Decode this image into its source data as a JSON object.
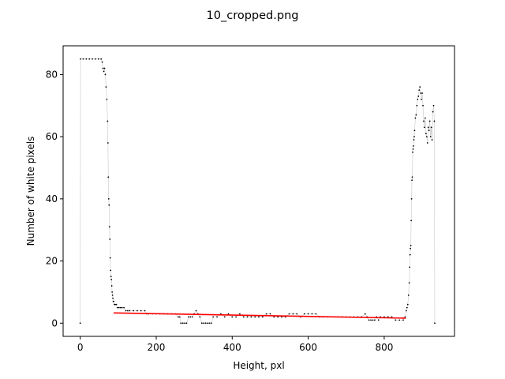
{
  "chart_data": {
    "type": "scatter",
    "title": "10_cropped.png",
    "xlabel": "Height, pxl",
    "ylabel": "Number of white pixels",
    "xlim": [
      -45,
      985
    ],
    "ylim": [
      -4.25,
      89.25
    ],
    "xticks": [
      0,
      200,
      400,
      600,
      800
    ],
    "yticks": [
      0,
      20,
      40,
      60,
      80
    ],
    "grid": false,
    "series": [
      {
        "kind": "points_with_line",
        "color": "#000000",
        "line_color": "#c8c8c8",
        "points": [
          [
            0,
            0
          ],
          [
            1,
            85
          ],
          [
            8,
            85
          ],
          [
            16,
            85
          ],
          [
            24,
            85
          ],
          [
            32,
            85
          ],
          [
            40,
            85
          ],
          [
            48,
            85
          ],
          [
            55,
            85
          ],
          [
            58,
            84
          ],
          [
            60,
            82
          ],
          [
            62,
            81
          ],
          [
            64,
            82
          ],
          [
            66,
            80
          ],
          [
            68,
            76
          ],
          [
            70,
            72
          ],
          [
            72,
            65
          ],
          [
            73,
            58
          ],
          [
            74,
            47
          ],
          [
            75,
            40
          ],
          [
            76,
            38
          ],
          [
            77,
            31
          ],
          [
            78,
            27
          ],
          [
            79,
            21
          ],
          [
            80,
            17
          ],
          [
            81,
            15
          ],
          [
            82,
            14
          ],
          [
            83,
            12
          ],
          [
            84,
            10
          ],
          [
            85,
            9
          ],
          [
            86,
            8
          ],
          [
            87,
            7
          ],
          [
            88,
            7
          ],
          [
            90,
            6
          ],
          [
            92,
            6
          ],
          [
            95,
            6
          ],
          [
            98,
            5
          ],
          [
            102,
            5
          ],
          [
            106,
            5
          ],
          [
            110,
            5
          ],
          [
            115,
            5
          ],
          [
            120,
            4
          ],
          [
            125,
            4
          ],
          [
            130,
            4
          ],
          [
            140,
            4
          ],
          [
            150,
            4
          ],
          [
            160,
            4
          ],
          [
            170,
            4
          ],
          [
            175,
            3
          ],
          [
            180,
            3
          ],
          [
            190,
            3
          ],
          [
            200,
            3
          ],
          [
            210,
            3
          ],
          [
            220,
            3
          ],
          [
            230,
            3
          ],
          [
            240,
            3
          ],
          [
            250,
            3
          ],
          [
            258,
            2
          ],
          [
            262,
            2
          ],
          [
            265,
            0
          ],
          [
            270,
            0
          ],
          [
            275,
            0
          ],
          [
            280,
            0
          ],
          [
            285,
            2
          ],
          [
            290,
            2
          ],
          [
            295,
            2
          ],
          [
            300,
            3
          ],
          [
            305,
            4
          ],
          [
            310,
            3
          ],
          [
            315,
            2
          ],
          [
            320,
            0
          ],
          [
            325,
            0
          ],
          [
            330,
            0
          ],
          [
            335,
            0
          ],
          [
            340,
            0
          ],
          [
            345,
            0
          ],
          [
            350,
            2
          ],
          [
            360,
            2
          ],
          [
            370,
            3
          ],
          [
            380,
            2
          ],
          [
            390,
            3
          ],
          [
            400,
            2
          ],
          [
            410,
            2
          ],
          [
            420,
            3
          ],
          [
            430,
            2
          ],
          [
            440,
            2
          ],
          [
            450,
            2
          ],
          [
            460,
            2
          ],
          [
            470,
            2
          ],
          [
            480,
            2
          ],
          [
            490,
            3
          ],
          [
            500,
            3
          ],
          [
            510,
            2
          ],
          [
            520,
            2
          ],
          [
            530,
            2
          ],
          [
            540,
            2
          ],
          [
            550,
            3
          ],
          [
            560,
            3
          ],
          [
            570,
            3
          ],
          [
            580,
            2
          ],
          [
            590,
            3
          ],
          [
            600,
            3
          ],
          [
            610,
            3
          ],
          [
            620,
            3
          ],
          [
            630,
            2
          ],
          [
            640,
            2
          ],
          [
            650,
            2
          ],
          [
            660,
            2
          ],
          [
            670,
            2
          ],
          [
            680,
            2
          ],
          [
            690,
            2
          ],
          [
            700,
            2
          ],
          [
            710,
            2
          ],
          [
            720,
            2
          ],
          [
            730,
            2
          ],
          [
            740,
            2
          ],
          [
            750,
            3
          ],
          [
            755,
            2
          ],
          [
            760,
            1
          ],
          [
            765,
            1
          ],
          [
            770,
            1
          ],
          [
            775,
            1
          ],
          [
            780,
            2
          ],
          [
            785,
            1
          ],
          [
            790,
            2
          ],
          [
            800,
            2
          ],
          [
            810,
            2
          ],
          [
            820,
            2
          ],
          [
            830,
            1
          ],
          [
            840,
            1
          ],
          [
            850,
            1
          ],
          [
            855,
            2
          ],
          [
            858,
            4
          ],
          [
            860,
            5
          ],
          [
            862,
            6
          ],
          [
            864,
            9
          ],
          [
            866,
            13
          ],
          [
            867,
            18
          ],
          [
            868,
            22
          ],
          [
            869,
            24
          ],
          [
            870,
            25
          ],
          [
            871,
            33
          ],
          [
            872,
            40
          ],
          [
            873,
            46
          ],
          [
            874,
            47
          ],
          [
            875,
            55
          ],
          [
            876,
            56
          ],
          [
            877,
            57
          ],
          [
            878,
            59
          ],
          [
            879,
            60
          ],
          [
            880,
            62
          ],
          [
            882,
            66
          ],
          [
            884,
            67
          ],
          [
            886,
            70
          ],
          [
            888,
            72
          ],
          [
            890,
            73
          ],
          [
            892,
            75
          ],
          [
            894,
            76
          ],
          [
            896,
            74
          ],
          [
            898,
            72
          ],
          [
            900,
            74
          ],
          [
            902,
            70
          ],
          [
            904,
            65
          ],
          [
            906,
            63
          ],
          [
            908,
            66
          ],
          [
            910,
            61
          ],
          [
            912,
            60
          ],
          [
            914,
            58
          ],
          [
            916,
            63
          ],
          [
            918,
            62
          ],
          [
            920,
            65
          ],
          [
            922,
            60
          ],
          [
            924,
            63
          ],
          [
            926,
            59
          ],
          [
            928,
            68
          ],
          [
            930,
            70
          ],
          [
            932,
            65
          ],
          [
            933,
            0
          ]
        ]
      },
      {
        "kind": "fit_line",
        "color": "#ff0000",
        "x": [
          88,
          857
        ],
        "y": [
          3.3,
          1.6
        ]
      }
    ]
  }
}
